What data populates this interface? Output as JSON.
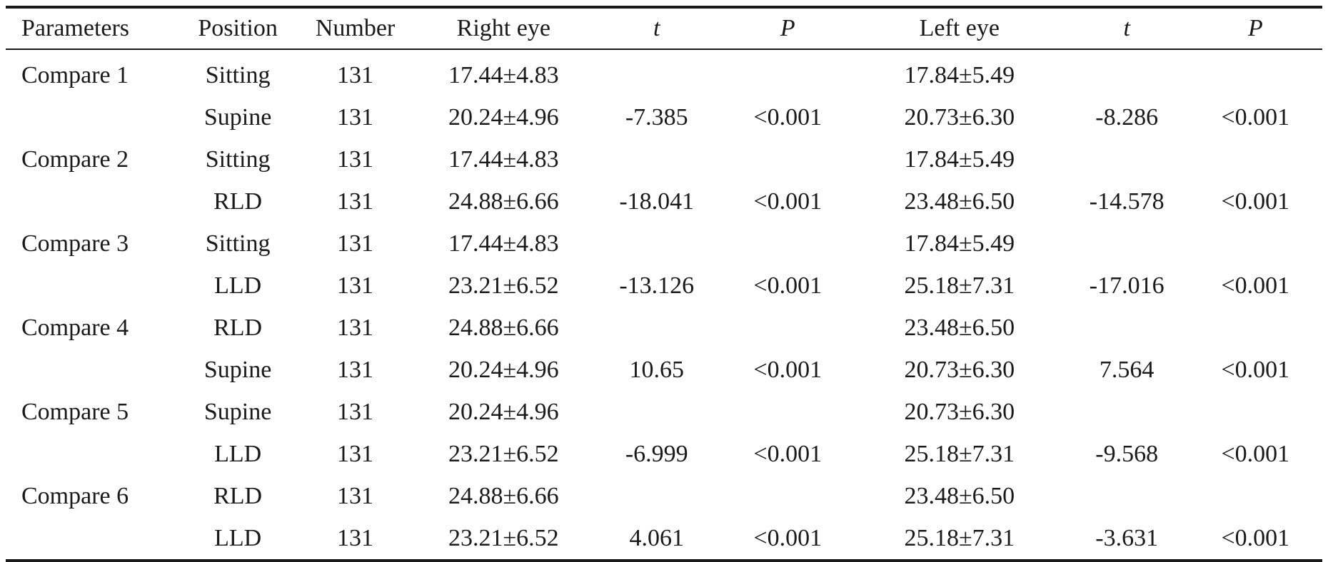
{
  "headers": [
    "Parameters",
    "Position",
    "Number",
    "Right eye",
    "t",
    "P",
    "Left eye",
    "t",
    "P"
  ],
  "rows": [
    [
      "Compare 1",
      "Sitting",
      "131",
      "17.44±4.83",
      "",
      "",
      "17.84±5.49",
      "",
      ""
    ],
    [
      "",
      "Supine",
      "131",
      "20.24±4.96",
      "-7.385",
      "<0.001",
      "20.73±6.30",
      "-8.286",
      "<0.001"
    ],
    [
      "Compare 2",
      "Sitting",
      "131",
      "17.44±4.83",
      "",
      "",
      "17.84±5.49",
      "",
      ""
    ],
    [
      "",
      "RLD",
      "131",
      "24.88±6.66",
      "-18.041",
      "<0.001",
      "23.48±6.50",
      "-14.578",
      "<0.001"
    ],
    [
      "Compare 3",
      "Sitting",
      "131",
      "17.44±4.83",
      "",
      "",
      "17.84±5.49",
      "",
      ""
    ],
    [
      "",
      "LLD",
      "131",
      "23.21±6.52",
      "-13.126",
      "<0.001",
      "25.18±7.31",
      "-17.016",
      "<0.001"
    ],
    [
      "Compare 4",
      "RLD",
      "131",
      "24.88±6.66",
      "",
      "",
      "23.48±6.50",
      "",
      ""
    ],
    [
      "",
      "Supine",
      "131",
      "20.24±4.96",
      "10.65",
      "<0.001",
      "20.73±6.30",
      "7.564",
      "<0.001"
    ],
    [
      "Compare 5",
      "Supine",
      "131",
      "20.24±4.96",
      "",
      "",
      "20.73±6.30",
      "",
      ""
    ],
    [
      "",
      "LLD",
      "131",
      "23.21±6.52",
      "-6.999",
      "<0.001",
      "25.18±7.31",
      "-9.568",
      "<0.001"
    ],
    [
      "Compare 6",
      "RLD",
      "131",
      "24.88±6.66",
      "",
      "",
      "23.48±6.50",
      "",
      ""
    ],
    [
      "",
      "LLD",
      "131",
      "23.21±6.52",
      "4.061",
      "<0.001",
      "25.18±7.31",
      "-3.631",
      "<0.001"
    ]
  ]
}
